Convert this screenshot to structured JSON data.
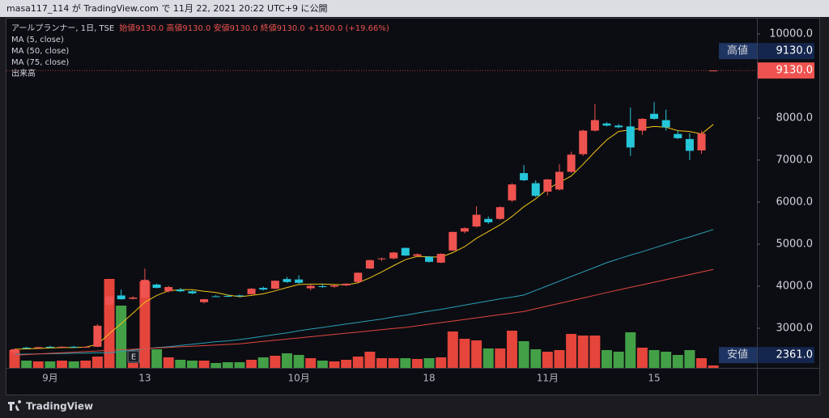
{
  "header": {
    "text": "masa117_114 が TradingView.com で 11月 22, 2021 20:22 UTC+9 に公開"
  },
  "footer_brand": "TradingView",
  "chart_data": {
    "type": "candlestick",
    "title": "アールプランナー, 1日, TSE",
    "legend_ohlc": "始値9130.0 高値9130.0 安値9130.0 終値9130.0 +1500.0 (+19.66%)",
    "volume_label": "出来高",
    "earnings_marker": "E",
    "categories": [
      null,
      null,
      null,
      "9月",
      null,
      null,
      null,
      null,
      null,
      null,
      null,
      "13",
      null,
      null,
      null,
      null,
      null,
      null,
      null,
      null,
      null,
      null,
      null,
      null,
      "10月",
      null,
      null,
      null,
      null,
      null,
      null,
      null,
      null,
      null,
      null,
      "18",
      null,
      null,
      null,
      null,
      null,
      null,
      null,
      null,
      null,
      "11月",
      null,
      null,
      null,
      null,
      null,
      null,
      null,
      null,
      "15",
      null,
      null,
      null,
      null,
      null
    ],
    "open": [
      2420,
      2540,
      2530,
      2560,
      2540,
      2560,
      2550,
      2560,
      3560,
      3780,
      3700,
      3730,
      4040,
      3880,
      3920,
      3880,
      3620,
      3760,
      3770,
      3780,
      3810,
      3960,
      3940,
      4170,
      4160,
      3950,
      4000,
      3990,
      4020,
      4100,
      4420,
      4640,
      4660,
      4910,
      4720,
      4700,
      4560,
      4850,
      5300,
      5420,
      5600,
      5600,
      6040,
      6690,
      6450,
      6250,
      6300,
      6720,
      7140,
      7700,
      7870,
      7820,
      7800,
      7700,
      8100,
      7950,
      7620,
      7500,
      7230,
      9130
    ],
    "high": [
      2520,
      2560,
      2560,
      2580,
      2570,
      2580,
      2570,
      3100,
      3760,
      3920,
      3760,
      4420,
      4060,
      4010,
      3960,
      3900,
      3700,
      3790,
      3800,
      3800,
      3960,
      3990,
      4140,
      4220,
      4260,
      4040,
      4050,
      4030,
      4070,
      4330,
      4630,
      4680,
      4820,
      4920,
      4780,
      4720,
      4780,
      5300,
      5400,
      5900,
      5660,
      5900,
      6450,
      6880,
      6520,
      6550,
      6900,
      7200,
      7720,
      8330,
      7900,
      7860,
      8250,
      8000,
      8380,
      8200,
      7700,
      7640,
      7700,
      9130
    ],
    "low": [
      2361,
      2520,
      2510,
      2530,
      2520,
      2540,
      2530,
      2550,
      3500,
      3680,
      3690,
      3720,
      3950,
      3850,
      3860,
      3810,
      3590,
      3740,
      3740,
      3750,
      3800,
      3900,
      3930,
      4080,
      4060,
      3900,
      3960,
      3960,
      4000,
      4090,
      4410,
      4600,
      4640,
      4720,
      4700,
      4560,
      4550,
      4840,
      5260,
      5400,
      5480,
      5580,
      6000,
      6500,
      6120,
      6160,
      6280,
      6700,
      7100,
      7680,
      7800,
      7760,
      7100,
      7600,
      7960,
      7700,
      7500,
      7000,
      7150,
      9130
    ],
    "close": [
      2500,
      2530,
      2550,
      2540,
      2560,
      2550,
      2560,
      3060,
      3760,
      3690,
      3730,
      4150,
      3960,
      3980,
      3880,
      3830,
      3690,
      3750,
      3750,
      3760,
      3940,
      3920,
      4130,
      4100,
      4080,
      4010,
      3980,
      4020,
      4060,
      4320,
      4620,
      4660,
      4800,
      4730,
      4760,
      4580,
      4770,
      5290,
      5380,
      5700,
      5520,
      5880,
      6420,
      6520,
      6150,
      6540,
      6720,
      7130,
      7700,
      7950,
      7820,
      7780,
      7300,
      7980,
      7980,
      7780,
      7520,
      7220,
      7630,
      9130
    ],
    "volume": [
      220000,
      90000,
      80000,
      80000,
      90000,
      80000,
      90000,
      140000,
      1100000,
      770000,
      60000,
      1070000,
      230000,
      130000,
      100000,
      90000,
      90000,
      60000,
      70000,
      70000,
      100000,
      130000,
      150000,
      180000,
      160000,
      120000,
      90000,
      80000,
      100000,
      140000,
      200000,
      120000,
      120000,
      120000,
      110000,
      120000,
      130000,
      450000,
      360000,
      340000,
      240000,
      240000,
      460000,
      330000,
      230000,
      200000,
      220000,
      420000,
      400000,
      400000,
      220000,
      200000,
      440000,
      250000,
      220000,
      200000,
      160000,
      220000,
      120000,
      30000
    ],
    "up_color": "#ef5350",
    "down_color": "#26c6da",
    "volume_up_color": "#e5453b",
    "volume_down_color": "#43a047",
    "series": [
      {
        "name": "MA (5, close)",
        "color": "#f2c418",
        "values": [
          2500,
          2510,
          2520,
          2530,
          2540,
          2540,
          2550,
          2620,
          2870,
          3110,
          3360,
          3620,
          3780,
          3890,
          3920,
          3920,
          3880,
          3850,
          3790,
          3750,
          3780,
          3820,
          3890,
          3970,
          4040,
          4050,
          4050,
          4040,
          4030,
          4080,
          4200,
          4340,
          4490,
          4630,
          4710,
          4700,
          4690,
          4800,
          4940,
          5140,
          5300,
          5460,
          5660,
          5890,
          6080,
          6310,
          6470,
          6620,
          6900,
          7200,
          7480,
          7680,
          7720,
          7760,
          7800,
          7780,
          7700,
          7680,
          7620,
          7850
        ]
      },
      {
        "name": "MA (50, close)",
        "color": "#2a9fb5",
        "values": [
          2380,
          2385,
          2390,
          2395,
          2400,
          2405,
          2410,
          2415,
          2420,
          2450,
          2480,
          2510,
          2540,
          2560,
          2590,
          2620,
          2650,
          2680,
          2700,
          2730,
          2770,
          2810,
          2850,
          2890,
          2940,
          2980,
          3020,
          3060,
          3100,
          3140,
          3180,
          3220,
          3270,
          3310,
          3360,
          3410,
          3450,
          3500,
          3550,
          3600,
          3650,
          3700,
          3740,
          3790,
          3900,
          4010,
          4120,
          4230,
          4340,
          4450,
          4560,
          4650,
          4740,
          4820,
          4910,
          5000,
          5090,
          5170,
          5260,
          5350
        ]
      },
      {
        "name": "MA (75, close)",
        "color": "#e0473f",
        "values": [
          2360,
          2374,
          2388,
          2403,
          2417,
          2431,
          2445,
          2459,
          2474,
          2488,
          2502,
          2516,
          2530,
          2545,
          2559,
          2573,
          2587,
          2602,
          2616,
          2630,
          2658,
          2686,
          2714,
          2742,
          2770,
          2798,
          2826,
          2854,
          2882,
          2910,
          2938,
          2966,
          2994,
          3020,
          3058,
          3096,
          3134,
          3172,
          3210,
          3248,
          3286,
          3324,
          3362,
          3400,
          3464,
          3528,
          3592,
          3656,
          3720,
          3784,
          3850,
          3911,
          3972,
          4033,
          4094,
          4155,
          4216,
          4277,
          4338,
          4400
        ]
      }
    ],
    "ylim": [
      2050,
      10230
    ],
    "yticks": [
      {
        "value": 3000,
        "label": "3000.0"
      },
      {
        "value": 4000,
        "label": "4000.0"
      },
      {
        "value": 5000,
        "label": "5000.0"
      },
      {
        "value": 6000,
        "label": "6000.0"
      },
      {
        "value": 7000,
        "label": "7000.0"
      },
      {
        "value": 8000,
        "label": "8000.0"
      },
      {
        "value": 10000,
        "label": "10000.0"
      }
    ],
    "grid": false,
    "high_marker": {
      "name": "高値",
      "value": 9130,
      "label": "9130.0"
    },
    "last_price": {
      "value": 9130,
      "label": "9130.0",
      "color": "#ef5350"
    },
    "low_marker": {
      "name": "安値",
      "value": 2361,
      "label": "2361.0"
    }
  }
}
